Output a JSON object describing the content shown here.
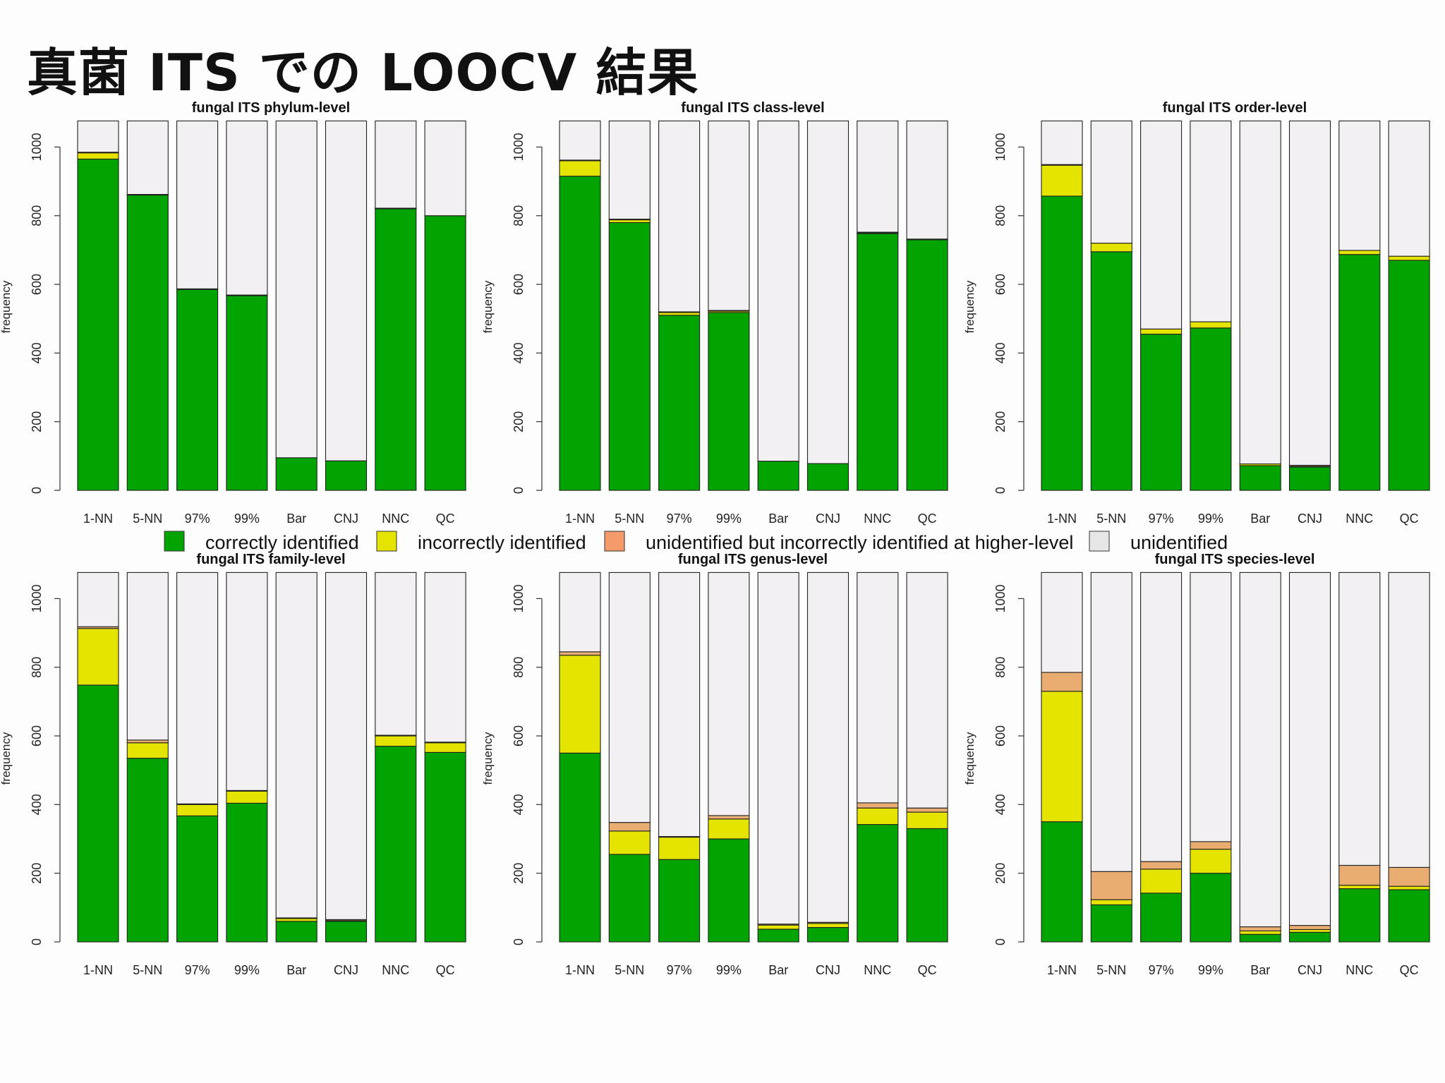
{
  "slide_title": "真菌 ITS での LOOCV 結果",
  "colors": {
    "correct": "#00a300",
    "incorrect": "#e4e400",
    "higher": "#e9ad72",
    "unidentified": "#f2f0f2",
    "legend_higher": "#f59a6a",
    "legend_unidentified": "#e6e6e6"
  },
  "legend": {
    "items": [
      {
        "label": "correctly identified",
        "color_key": "correct"
      },
      {
        "label": "incorrectly identified",
        "color_key": "incorrect"
      },
      {
        "label": "unidentified but incorrectly identified at higher-level",
        "color_key": "legend_higher"
      },
      {
        "label": "unidentified",
        "color_key": "legend_unidentified"
      }
    ]
  },
  "chart_data": [
    {
      "type": "bar",
      "stacked": true,
      "title": "fungal ITS phylum-level",
      "ylabel": "frequency",
      "xlabel": "",
      "ylim": [
        0,
        1000
      ],
      "yticks": [
        0,
        200,
        400,
        600,
        800,
        1000
      ],
      "total": 1076,
      "categories": [
        "1-NN",
        "5-NN",
        "97%",
        "99%",
        "Bar",
        "CNJ",
        "NNC",
        "QC"
      ],
      "series": [
        {
          "key": "correct",
          "values": [
            965,
            860,
            585,
            567,
            95,
            86,
            820,
            800
          ]
        },
        {
          "key": "incorrect",
          "values": [
            18,
            0,
            0,
            0,
            0,
            0,
            0,
            0
          ]
        },
        {
          "key": "higher",
          "values": [
            2,
            2,
            2,
            2,
            0,
            0,
            2,
            0
          ]
        },
        {
          "key": "unidentified",
          "values": [
            91,
            214,
            489,
            507,
            981,
            990,
            254,
            276
          ]
        }
      ]
    },
    {
      "type": "bar",
      "stacked": true,
      "title": "fungal ITS class-level",
      "ylabel": "frequency",
      "xlabel": "",
      "ylim": [
        0,
        1000
      ],
      "yticks": [
        0,
        200,
        400,
        600,
        800,
        1000
      ],
      "total": 1076,
      "categories": [
        "1-NN",
        "5-NN",
        "97%",
        "99%",
        "Bar",
        "CNJ",
        "NNC",
        "QC"
      ],
      "series": [
        {
          "key": "correct",
          "values": [
            915,
            780,
            510,
            518,
            85,
            78,
            748,
            730
          ]
        },
        {
          "key": "incorrect",
          "values": [
            45,
            8,
            8,
            4,
            0,
            0,
            2,
            0
          ]
        },
        {
          "key": "higher",
          "values": [
            2,
            2,
            2,
            2,
            0,
            0,
            2,
            2
          ]
        },
        {
          "key": "unidentified",
          "values": [
            114,
            286,
            556,
            552,
            991,
            998,
            324,
            344
          ]
        }
      ]
    },
    {
      "type": "bar",
      "stacked": true,
      "title": "fungal ITS order-level",
      "ylabel": "frequency",
      "xlabel": "",
      "ylim": [
        0,
        1000
      ],
      "yticks": [
        0,
        200,
        400,
        600,
        800,
        1000
      ],
      "total": 1076,
      "categories": [
        "1-NN",
        "5-NN",
        "97%",
        "99%",
        "Bar",
        "CNJ",
        "NNC",
        "QC"
      ],
      "series": [
        {
          "key": "correct",
          "values": [
            857,
            695,
            455,
            473,
            72,
            68,
            687,
            670
          ]
        },
        {
          "key": "incorrect",
          "values": [
            90,
            25,
            15,
            18,
            5,
            2,
            12,
            12
          ]
        },
        {
          "key": "higher",
          "values": [
            2,
            0,
            0,
            0,
            0,
            3,
            0,
            0
          ]
        },
        {
          "key": "unidentified",
          "values": [
            127,
            356,
            606,
            585,
            999,
            1003,
            377,
            394
          ]
        }
      ]
    },
    {
      "type": "bar",
      "stacked": true,
      "title": "fungal ITS family-level",
      "ylabel": "frequency",
      "xlabel": "",
      "ylim": [
        0,
        1000
      ],
      "yticks": [
        0,
        200,
        400,
        600,
        800,
        1000
      ],
      "total": 1076,
      "categories": [
        "1-NN",
        "5-NN",
        "97%",
        "99%",
        "Bar",
        "CNJ",
        "NNC",
        "QC"
      ],
      "series": [
        {
          "key": "correct",
          "values": [
            748,
            535,
            367,
            404,
            60,
            60,
            570,
            552
          ]
        },
        {
          "key": "incorrect",
          "values": [
            165,
            45,
            33,
            35,
            8,
            2,
            30,
            28
          ]
        },
        {
          "key": "higher",
          "values": [
            5,
            8,
            2,
            2,
            2,
            3,
            2,
            2
          ]
        },
        {
          "key": "unidentified",
          "values": [
            158,
            488,
            674,
            635,
            1006,
            1011,
            474,
            494
          ]
        }
      ]
    },
    {
      "type": "bar",
      "stacked": true,
      "title": "fungal ITS genus-level",
      "ylabel": "frequency",
      "xlabel": "",
      "ylim": [
        0,
        1000
      ],
      "yticks": [
        0,
        200,
        400,
        600,
        800,
        1000
      ],
      "total": 1076,
      "categories": [
        "1-NN",
        "5-NN",
        "97%",
        "99%",
        "Bar",
        "CNJ",
        "NNC",
        "QC"
      ],
      "series": [
        {
          "key": "correct",
          "values": [
            550,
            255,
            240,
            300,
            37,
            42,
            342,
            330
          ]
        },
        {
          "key": "incorrect",
          "values": [
            285,
            68,
            65,
            58,
            12,
            12,
            48,
            48
          ]
        },
        {
          "key": "higher",
          "values": [
            10,
            25,
            2,
            10,
            3,
            3,
            15,
            12
          ]
        },
        {
          "key": "unidentified",
          "values": [
            231,
            728,
            769,
            708,
            1024,
            1019,
            671,
            686
          ]
        }
      ]
    },
    {
      "type": "bar",
      "stacked": true,
      "title": "fungal ITS species-level",
      "ylabel": "frequency",
      "xlabel": "",
      "ylim": [
        0,
        1000
      ],
      "yticks": [
        0,
        200,
        400,
        600,
        800,
        1000
      ],
      "total": 1076,
      "categories": [
        "1-NN",
        "5-NN",
        "97%",
        "99%",
        "Bar",
        "CNJ",
        "NNC",
        "QC"
      ],
      "series": [
        {
          "key": "correct",
          "values": [
            350,
            108,
            142,
            200,
            22,
            28,
            155,
            152
          ]
        },
        {
          "key": "incorrect",
          "values": [
            380,
            15,
            70,
            70,
            10,
            8,
            10,
            10
          ]
        },
        {
          "key": "higher",
          "values": [
            55,
            82,
            22,
            22,
            12,
            12,
            58,
            55
          ]
        },
        {
          "key": "unidentified",
          "values": [
            291,
            871,
            842,
            784,
            1032,
            1028,
            853,
            859
          ]
        }
      ]
    }
  ]
}
